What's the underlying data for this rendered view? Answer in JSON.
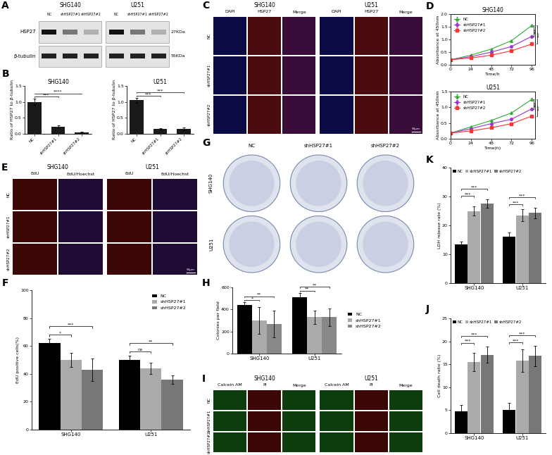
{
  "chart_data": [
    {
      "panel": "B",
      "type": "bar",
      "title": "SHG140",
      "categories": [
        "NC",
        "shHSP27#1",
        "shHSP27#2"
      ],
      "values": [
        1.0,
        0.22,
        0.05
      ],
      "errors": [
        0.1,
        0.05,
        0.02
      ],
      "color": "#1a1a1a",
      "y_label": "Ratio of HSP27 to β-tubulin",
      "ylim": [
        0,
        1.5
      ],
      "yticks": [
        {
          "value": 0,
          "label": "0.0"
        },
        {
          "value": 0.5,
          "label": "0.5"
        },
        {
          "value": 1.0,
          "label": "1.0"
        },
        {
          "value": 1.5,
          "label": "1.5"
        }
      ],
      "significance": [
        {
          "pair": [
            "NC",
            "shHSP27#1"
          ],
          "label": "***"
        },
        {
          "pair": [
            "NC",
            "shHSP27#2"
          ],
          "label": "****"
        }
      ]
    },
    {
      "type": "bar",
      "title": "U251",
      "categories": [
        "NC",
        "shHSP27#1",
        "shHSP27#2"
      ],
      "values": [
        1.05,
        0.15,
        0.15
      ],
      "errors": [
        0.08,
        0.02,
        0.04
      ],
      "color": "#1a1a1a",
      "y_label": "Ratio of HSP27 to β-tubulin",
      "ylim": [
        0,
        1.5
      ],
      "yticks": [
        {
          "value": 0,
          "label": "0.0"
        },
        {
          "value": 0.5,
          "label": "0.5"
        },
        {
          "value": 1.0,
          "label": "1.0"
        },
        {
          "value": 1.5,
          "label": "1.5"
        }
      ],
      "significance": [
        {
          "pair": [
            "NC",
            "shHSP27#1"
          ],
          "label": "***"
        },
        {
          "pair": [
            "NC",
            "shHSP27#2"
          ],
          "label": "***"
        }
      ]
    },
    {
      "panel": "D",
      "type": "line",
      "title": "SHG140",
      "x": [
        0,
        24,
        48,
        72,
        96
      ],
      "x_label": "Time/h",
      "y_label": "Absorbance at 450nm",
      "xlim": [
        0,
        100
      ],
      "xticks": [
        0,
        24,
        48,
        72,
        96
      ],
      "ylim": [
        0,
        2.0
      ],
      "yticks": [
        {
          "value": 0,
          "label": "0.0"
        },
        {
          "value": 0.5,
          "label": "0.5"
        },
        {
          "value": 1.0,
          "label": "1.0"
        },
        {
          "value": 1.5,
          "label": "1.5"
        },
        {
          "value": 2.0,
          "label": "2.0"
        }
      ],
      "legend": "upper left",
      "series": [
        {
          "name": "NC",
          "color": "#33aa33",
          "marker": "triangle",
          "values": [
            0.2,
            0.38,
            0.62,
            0.95,
            1.55
          ],
          "errors": [
            0.01,
            0.02,
            0.02,
            0.03,
            0.03
          ]
        },
        {
          "name": "shHSP27#1",
          "color": "#9933cc",
          "marker": "circle",
          "values": [
            0.2,
            0.32,
            0.5,
            0.72,
            1.12
          ],
          "errors": [
            0.01,
            0.02,
            0.02,
            0.03,
            0.04
          ]
        },
        {
          "name": "shHSP27#2",
          "color": "#ff3333",
          "marker": "square",
          "values": [
            0.2,
            0.27,
            0.38,
            0.55,
            0.82
          ],
          "errors": [
            0.01,
            0.01,
            0.02,
            0.02,
            0.03
          ]
        }
      ],
      "significance": [
        {
          "pair": [
            "NC",
            "shHSP27#1"
          ],
          "label": "***"
        },
        {
          "pair": [
            "NC",
            "shHSP27#2"
          ],
          "label": "***"
        }
      ]
    },
    {
      "type": "line",
      "title": "U251",
      "x": [
        0,
        24,
        48,
        72,
        96
      ],
      "x_label": "Time(h)",
      "y_label": "Absorbance at 450nm",
      "xlim": [
        0,
        100
      ],
      "xticks": [
        0,
        24,
        48,
        72,
        96
      ],
      "ylim": [
        0,
        1.5
      ],
      "yticks": [
        {
          "value": 0,
          "label": "0.0"
        },
        {
          "value": 0.5,
          "label": "0.5"
        },
        {
          "value": 1.0,
          "label": "1.0"
        },
        {
          "value": 1.5,
          "label": "1.5"
        }
      ],
      "legend": "upper left",
      "series": [
        {
          "name": "NC",
          "color": "#33aa33",
          "marker": "triangle",
          "values": [
            0.18,
            0.38,
            0.58,
            0.82,
            1.25
          ],
          "errors": [
            0.01,
            0.02,
            0.02,
            0.03,
            0.05
          ]
        },
        {
          "name": "shHSP27#1",
          "color": "#9933cc",
          "marker": "circle",
          "values": [
            0.18,
            0.32,
            0.48,
            0.62,
            0.95
          ],
          "errors": [
            0.01,
            0.02,
            0.02,
            0.03,
            0.04
          ]
        },
        {
          "name": "shHSP27#2",
          "color": "#ff3333",
          "marker": "square",
          "values": [
            0.18,
            0.25,
            0.35,
            0.48,
            0.72
          ],
          "errors": [
            0.01,
            0.01,
            0.02,
            0.02,
            0.03
          ]
        }
      ],
      "significance": [
        {
          "pair": [
            "NC",
            "shHSP27#1"
          ],
          "label": "***"
        },
        {
          "pair": [
            "NC",
            "shHSP27#2"
          ],
          "label": "***"
        }
      ]
    },
    {
      "panel": "F",
      "type": "bar",
      "categories": [
        "SHG140",
        "U251"
      ],
      "y_label": "EdU positive cells(%)",
      "ylim": [
        0,
        100
      ],
      "yticks": [
        0,
        20,
        40,
        60,
        80,
        100
      ],
      "legend": "upper right",
      "series": [
        {
          "name": "NC",
          "color": "#000000",
          "values": [
            62,
            50
          ],
          "errors": [
            3,
            3
          ]
        },
        {
          "name": "shHSP27#1",
          "color": "#aaaaaa",
          "values": [
            50,
            44
          ],
          "errors": [
            5,
            4
          ]
        },
        {
          "name": "shHSP27#2",
          "color": "#777777",
          "values": [
            43,
            36
          ],
          "errors": [
            8,
            3
          ]
        }
      ],
      "significance": [
        {
          "group": "SHG140",
          "pair": [
            "NC",
            "shHSP27#1"
          ],
          "label": "*"
        },
        {
          "group": "SHG140",
          "pair": [
            "NC",
            "shHSP27#2"
          ],
          "label": "***"
        },
        {
          "group": "U251",
          "pair": [
            "NC",
            "shHSP27#1"
          ],
          "label": "ns"
        },
        {
          "group": "U251",
          "pair": [
            "NC",
            "shHSP27#2"
          ],
          "label": "**"
        }
      ]
    },
    {
      "panel": "H",
      "type": "bar",
      "categories": [
        "SHG140",
        "U251"
      ],
      "y_label": "Colonies per field",
      "ylim": [
        0,
        600
      ],
      "yticks": [
        0,
        200,
        400,
        600
      ],
      "legend": "right",
      "series": [
        {
          "name": "NC",
          "color": "#000000",
          "values": [
            440,
            510
          ],
          "errors": [
            25,
            40
          ]
        },
        {
          "name": "shHSP27#1",
          "color": "#aaaaaa",
          "values": [
            300,
            330
          ],
          "errors": [
            120,
            60
          ]
        },
        {
          "name": "shHSP27#2",
          "color": "#888888",
          "values": [
            270,
            330
          ],
          "errors": [
            120,
            80
          ]
        }
      ],
      "significance": [
        {
          "group": "SHG140",
          "pair": [
            "NC",
            "shHSP27#1"
          ],
          "label": "*"
        },
        {
          "group": "SHG140",
          "pair": [
            "NC",
            "shHSP27#2"
          ],
          "label": "**"
        },
        {
          "group": "U251",
          "pair": [
            "NC",
            "shHSP27#1"
          ],
          "label": "**"
        },
        {
          "group": "U251",
          "pair": [
            "NC",
            "shHSP27#2"
          ],
          "label": "**"
        }
      ]
    },
    {
      "panel": "K",
      "type": "bar",
      "categories": [
        "SHG140",
        "U251"
      ],
      "y_label": "LDH release rate (%)",
      "ylim": [
        0,
        40
      ],
      "yticks": [
        0,
        10,
        20,
        30,
        40
      ],
      "legend": "upper left",
      "series": [
        {
          "name": "NC",
          "color": "#000000",
          "values": [
            13.5,
            16
          ],
          "errors": [
            1,
            1.5
          ]
        },
        {
          "name": "shHSP27#1",
          "color": "#aaaaaa",
          "values": [
            25,
            23.5
          ],
          "errors": [
            1.5,
            2
          ]
        },
        {
          "name": "shHSP27#2",
          "color": "#777777",
          "values": [
            27.5,
            24.3
          ],
          "errors": [
            1.5,
            1.8
          ]
        }
      ],
      "significance": [
        {
          "group": "SHG140",
          "pair": [
            "NC",
            "shHSP27#1"
          ],
          "label": "***"
        },
        {
          "group": "SHG140",
          "pair": [
            "NC",
            "shHSP27#2"
          ],
          "label": "***"
        },
        {
          "group": "U251",
          "pair": [
            "NC",
            "shHSP27#1"
          ],
          "label": "***"
        },
        {
          "group": "U251",
          "pair": [
            "NC",
            "shHSP27#2"
          ],
          "label": "***"
        }
      ]
    },
    {
      "panel": "J",
      "type": "bar",
      "categories": [
        "SHG140",
        "U251"
      ],
      "y_label": "Cell death ratio (%)",
      "ylim": [
        0,
        25
      ],
      "yticks": [
        0,
        5,
        10,
        15,
        20,
        25
      ],
      "legend": "upper left",
      "series": [
        {
          "name": "NC",
          "color": "#000000",
          "values": [
            4.7,
            5.1
          ],
          "errors": [
            1.5,
            1.5
          ]
        },
        {
          "name": "shHSP27#1",
          "color": "#aaaaaa",
          "values": [
            15.5,
            15.8
          ],
          "errors": [
            2,
            2.5
          ]
        },
        {
          "name": "shHSP27#2",
          "color": "#777777",
          "values": [
            17.1,
            16.8
          ],
          "errors": [
            1.8,
            2.2
          ]
        }
      ],
      "significance": [
        {
          "group": "SHG140",
          "pair": [
            "NC",
            "shHSP27#1"
          ],
          "label": "***"
        },
        {
          "group": "SHG140",
          "pair": [
            "NC",
            "shHSP27#2"
          ],
          "label": "***"
        },
        {
          "group": "U251",
          "pair": [
            "NC",
            "shHSP27#1"
          ],
          "label": "***"
        },
        {
          "group": "U251",
          "pair": [
            "NC",
            "shHSP27#2"
          ],
          "label": "***"
        }
      ]
    }
  ],
  "image_panels": [
    {
      "panel": "A",
      "type": "western_blot",
      "cell_lines": [
        "SHG140",
        "U251"
      ],
      "lanes": [
        "NC",
        "shHSP27#1",
        "shHSP27#2"
      ],
      "bands": [
        {
          "name": "HSP27",
          "size": "27KDa"
        },
        {
          "name": "β-tubulin",
          "size": "55KDa"
        }
      ]
    },
    {
      "panel": "C",
      "type": "fluorescence",
      "cell_lines": [
        "SHG140",
        "U251"
      ],
      "channels": [
        "DAPI",
        "HSP27",
        "Merge"
      ],
      "rows": [
        "NC",
        "shHSP27#1",
        "shHSP27#2"
      ],
      "scale_bar": "50μm"
    },
    {
      "panel": "E",
      "type": "fluorescence",
      "cell_lines": [
        "SHG140",
        "U251"
      ],
      "channels": [
        "EdU",
        "EdU/Hoechst"
      ],
      "rows": [
        "NC",
        "shHSP27#1",
        "shHSP27#2"
      ],
      "scale_bar": "50μm"
    },
    {
      "panel": "G",
      "type": "colony",
      "columns": [
        "NC",
        "shHSP27#1",
        "shHSP27#2"
      ],
      "rows": [
        "SHG140",
        "U251"
      ]
    },
    {
      "panel": "I",
      "type": "fluorescence",
      "cell_lines": [
        "SHG140",
        "U251"
      ],
      "channels": [
        "Calcein AM",
        "PI",
        "Merge"
      ],
      "rows": [
        "NC",
        "shHSP27#1",
        "shHSP27#2"
      ]
    }
  ]
}
